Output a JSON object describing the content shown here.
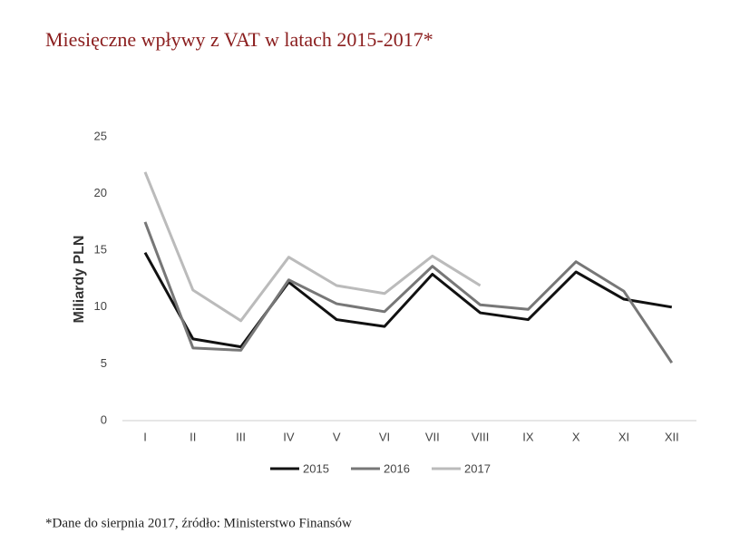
{
  "chart_data": {
    "type": "line",
    "title": "Miesięczne wpływy z VAT w latach 2015-2017*",
    "y_label": "Miliardy PLN",
    "footnote": "*Dane do sierpnia 2017, źródło: Ministerstwo Finansów",
    "categories": [
      "I",
      "II",
      "III",
      "IV",
      "V",
      "VI",
      "VII",
      "VIII",
      "IX",
      "X",
      "XI",
      "XII"
    ],
    "series": [
      {
        "name": "2015",
        "color": "#111111",
        "values": [
          14.8,
          7.2,
          6.5,
          12.2,
          8.9,
          8.3,
          12.9,
          9.5,
          8.9,
          13.1,
          10.7,
          10.0
        ]
      },
      {
        "name": "2016",
        "color": "#777777",
        "values": [
          17.5,
          6.4,
          6.2,
          12.4,
          10.3,
          9.6,
          13.6,
          10.2,
          9.8,
          14.0,
          11.4,
          5.1
        ]
      },
      {
        "name": "2017",
        "color": "#bbbbbb",
        "values": [
          21.9,
          11.5,
          8.8,
          14.4,
          11.9,
          11.2,
          14.5,
          11.9,
          null,
          null,
          null,
          null
        ]
      }
    ],
    "ylim": [
      0,
      25
    ],
    "yticks": [
      0,
      5,
      10,
      15,
      20,
      25
    ],
    "grid": false,
    "legend": "bottom"
  }
}
